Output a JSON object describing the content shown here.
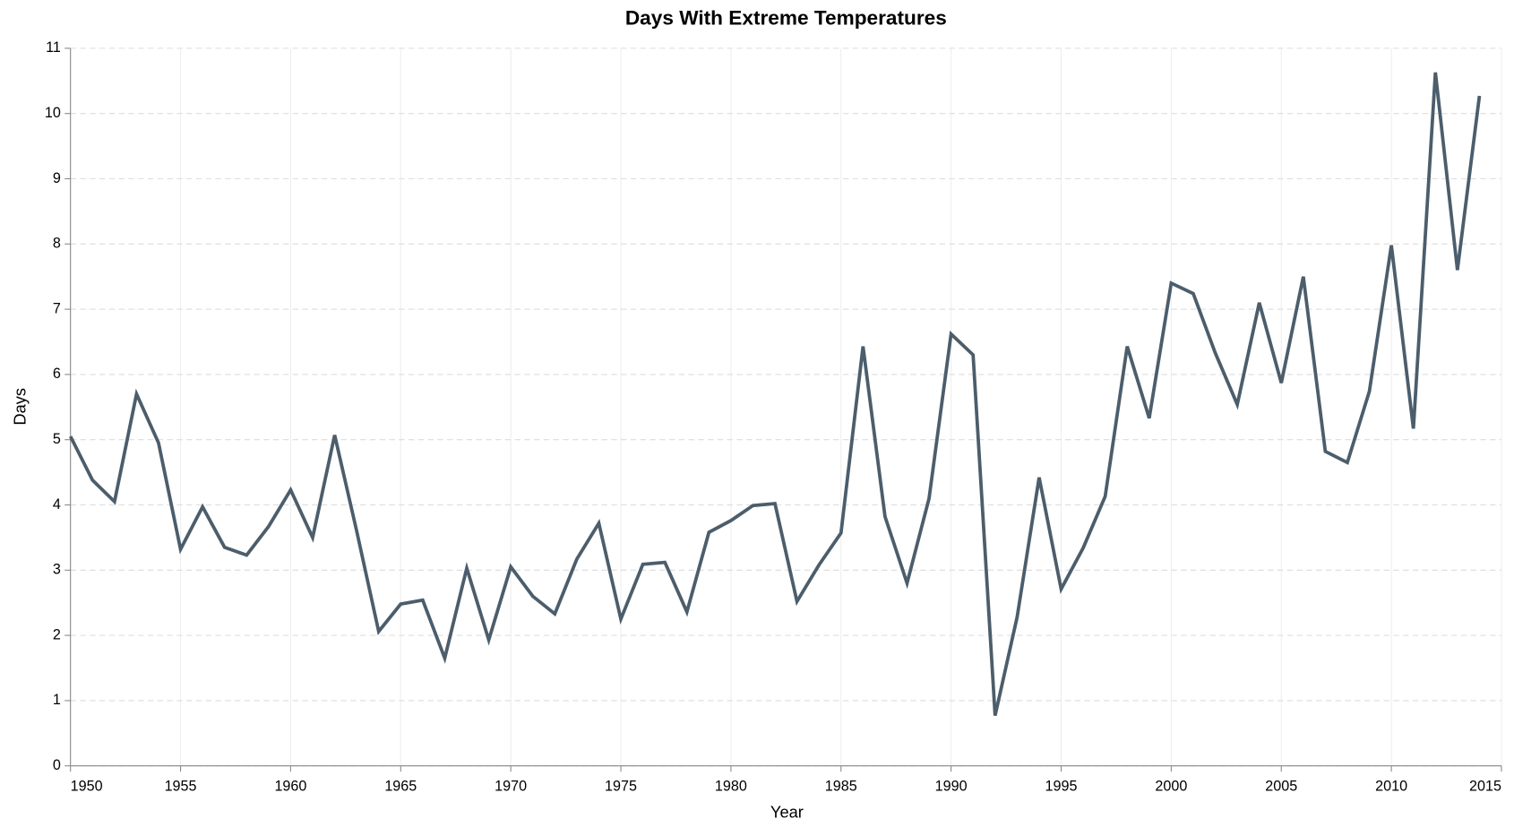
{
  "chart_data": {
    "type": "line",
    "title": "Days With Extreme Temperatures",
    "x_label": "Year",
    "y_label": "Days",
    "x": [
      1950,
      1951,
      1952,
      1953,
      1954,
      1955,
      1956,
      1957,
      1958,
      1959,
      1960,
      1961,
      1962,
      1963,
      1964,
      1965,
      1966,
      1967,
      1968,
      1969,
      1970,
      1971,
      1972,
      1973,
      1974,
      1975,
      1976,
      1977,
      1978,
      1979,
      1980,
      1981,
      1982,
      1983,
      1984,
      1985,
      1986,
      1987,
      1988,
      1989,
      1990,
      1991,
      1992,
      1993,
      1994,
      1995,
      1996,
      1997,
      1998,
      1999,
      2000,
      2001,
      2002,
      2003,
      2004,
      2005,
      2006,
      2007,
      2008,
      2009,
      2010,
      2011,
      2012,
      2013,
      2014
    ],
    "series": [
      {
        "name": "Days",
        "color": "#4c5d6b",
        "values": [
          5.05,
          4.38,
          4.05,
          5.7,
          4.95,
          3.32,
          3.97,
          3.35,
          3.23,
          3.67,
          4.23,
          3.5,
          5.07,
          3.6,
          2.06,
          2.48,
          2.54,
          1.65,
          3.03,
          1.93,
          3.05,
          2.6,
          2.33,
          3.17,
          3.72,
          2.25,
          3.09,
          3.12,
          2.36,
          3.58,
          3.76,
          3.99,
          4.02,
          2.52,
          3.08,
          3.57,
          6.43,
          3.82,
          2.8,
          4.1,
          6.62,
          6.3,
          0.77,
          2.28,
          4.42,
          2.71,
          3.34,
          4.13,
          6.43,
          5.33,
          7.4,
          7.24,
          6.33,
          5.54,
          7.1,
          5.87,
          7.5,
          4.82,
          4.65,
          5.74,
          7.98,
          5.17,
          10.63,
          7.6,
          10.27
        ]
      }
    ],
    "xlim": [
      1950,
      2015
    ],
    "xticks": [
      1950,
      1955,
      1960,
      1965,
      1970,
      1975,
      1980,
      1985,
      1990,
      1995,
      2000,
      2005,
      2010,
      2015
    ],
    "ylim": [
      0,
      11
    ],
    "yticks": [
      0,
      1,
      2,
      3,
      4,
      5,
      6,
      7,
      8,
      9,
      10,
      11
    ],
    "grid": true
  }
}
